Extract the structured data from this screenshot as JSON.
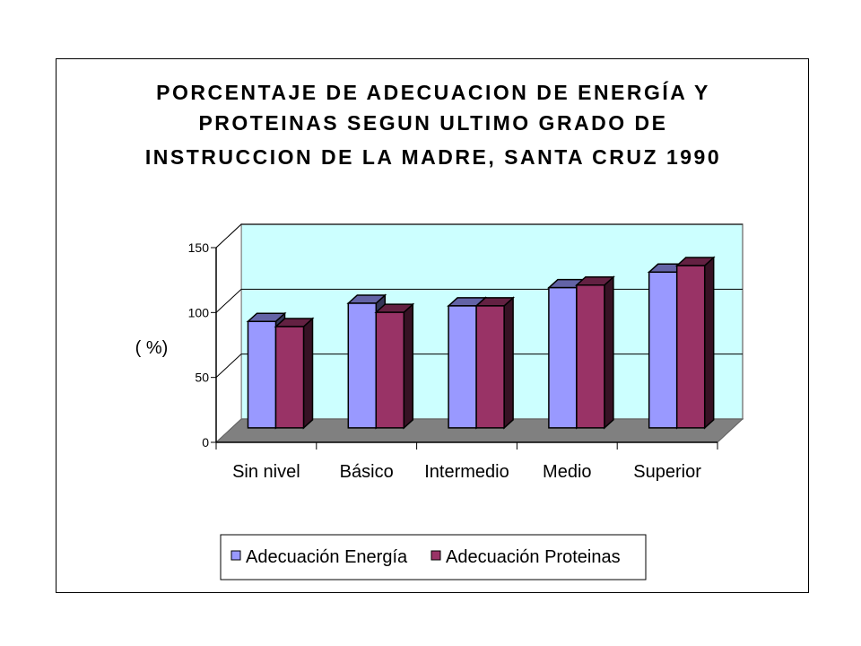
{
  "colors": {
    "series_energia": "#9999ff",
    "series_proteinas": "#993366",
    "plot_background": "#ccffff",
    "floor": "#808080",
    "side_wall": "#ffffff"
  },
  "chart_data": {
    "type": "bar",
    "title_lines": [
      "PORCENTAJE DE ADECUACION DE ENERGÍA Y",
      "PROTEINAS SEGUN ULTIMO GRADO DE",
      "INSTRUCCION DE LA MADRE, SANTA CRUZ 1990"
    ],
    "ylabel": "( %)",
    "xlabel": "",
    "ylim": [
      0,
      150
    ],
    "yticks": [
      "0",
      "50",
      "100",
      "150"
    ],
    "ytick_values": [
      0,
      50,
      100,
      150
    ],
    "grid": true,
    "three_d": true,
    "legend_position": "bottom",
    "categories": [
      "Sin nivel",
      "Básico",
      "Intermedio",
      "Medio",
      "Superior"
    ],
    "series": [
      {
        "name": "Adecuación Energía",
        "values": [
          82,
          96,
          94,
          108,
          120
        ]
      },
      {
        "name": "Adecuación Proteinas",
        "values": [
          78,
          89,
          94,
          110,
          125
        ]
      }
    ]
  }
}
